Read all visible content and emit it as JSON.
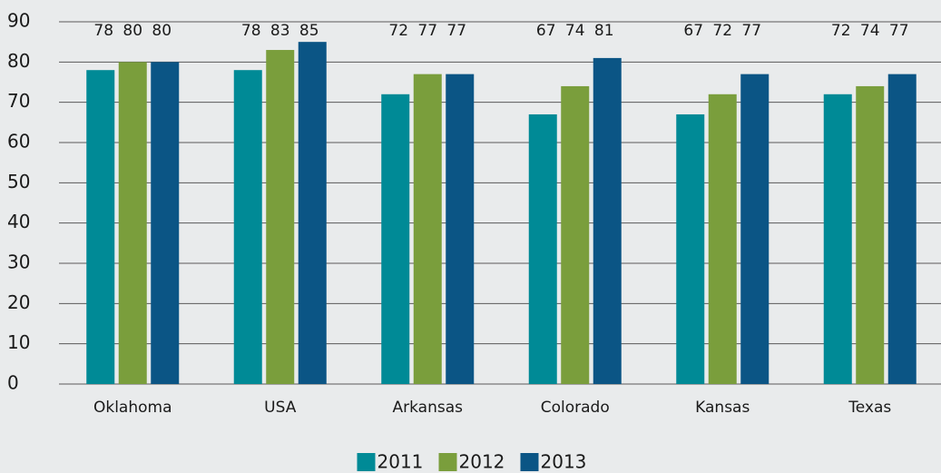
{
  "chart_data": {
    "type": "bar",
    "categories": [
      "Oklahoma",
      "USA",
      "Arkansas",
      "Colorado",
      "Kansas",
      "Texas"
    ],
    "series": [
      {
        "name": "2011",
        "color": "#008a96",
        "values": [
          78,
          78,
          72,
          67,
          67,
          72
        ]
      },
      {
        "name": "2012",
        "color": "#7a9e3c",
        "values": [
          80,
          83,
          77,
          74,
          72,
          74
        ]
      },
      {
        "name": "2013",
        "color": "#0b5585",
        "values": [
          80,
          85,
          77,
          81,
          77,
          77
        ]
      }
    ],
    "ylim": [
      0,
      90
    ],
    "yticks": [
      0,
      10,
      20,
      30,
      40,
      50,
      60,
      70,
      80,
      90
    ],
    "grid": true,
    "legend": "bottom"
  }
}
